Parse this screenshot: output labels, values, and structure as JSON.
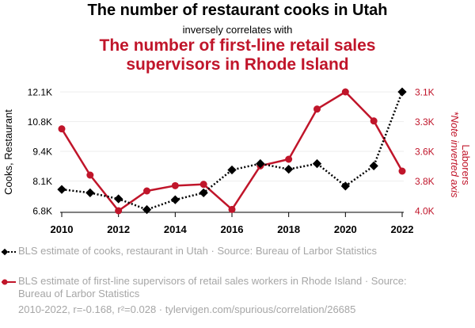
{
  "header": {
    "title": "The number of restaurant cooks in Utah",
    "subtitle": "inversely correlates with",
    "title2_line1": "The number of first-line retail sales",
    "title2_line2": "supervisors in Rhode Island"
  },
  "chart_data": {
    "type": "line",
    "x": [
      2010,
      2011,
      2012,
      2013,
      2014,
      2015,
      2016,
      2017,
      2018,
      2019,
      2020,
      2021,
      2022
    ],
    "x_ticks": [
      "2010",
      "2012",
      "2014",
      "2016",
      "2018",
      "2020",
      "2022"
    ],
    "series": [
      {
        "name": "BLS estimate of cooks, restaurant in Utah",
        "axis": "left",
        "color": "#000000",
        "values": [
          7750,
          7600,
          7330,
          6850,
          7290,
          7600,
          8620,
          8900,
          8650,
          8900,
          7900,
          8800,
          12100
        ]
      },
      {
        "name": "BLS estimate of first-line supervisors of retail sales workers in Rhode Island",
        "axis": "right",
        "color": "#c0152a",
        "values": [
          3380,
          3730,
          4000,
          3850,
          3810,
          3800,
          3990,
          3660,
          3610,
          3230,
          3100,
          3320,
          3700
        ]
      }
    ],
    "left_axis": {
      "label": "Cooks, Restaurant",
      "ticks": [
        "12.1K",
        "10.8K",
        "9.4K",
        "8.1K",
        "6.8K"
      ],
      "tick_values": [
        12100,
        10775,
        9450,
        8125,
        6800
      ],
      "ylim": [
        6800,
        12100
      ]
    },
    "right_axis": {
      "label": "Laborers",
      "note": "*Note inverted axis",
      "ticks": [
        "3.1K",
        "3.3K",
        "3.6K",
        "3.8K",
        "4.0K"
      ],
      "tick_values": [
        3100,
        3325,
        3550,
        3775,
        4000
      ],
      "ylim": [
        3100,
        4000
      ],
      "inverted": true
    }
  },
  "legend": {
    "item1": "BLS estimate of cooks, restaurant in Utah · Source: Bureau of Larbor Statistics",
    "item2": "BLS estimate of first-line supervisors of retail sales workers in Rhode Island · Source: Bureau of Larbor Statistics"
  },
  "footer": "2010-2022, r=-0.168, r²=0.028 · tylervigen.com/spurious/correlation/26685"
}
